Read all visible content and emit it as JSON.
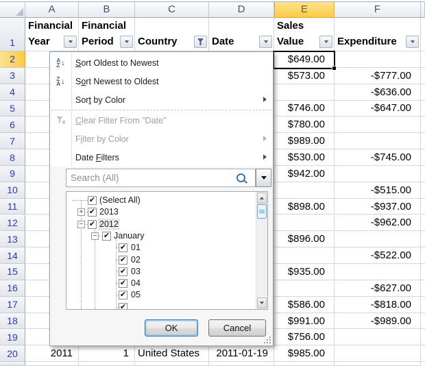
{
  "columns": [
    "A",
    "B",
    "C",
    "D",
    "E",
    "F"
  ],
  "selected_column": "E",
  "selected_cell": "E2",
  "header_row": [
    {
      "col": "A",
      "lines": [
        "Financial",
        "Year"
      ],
      "button": "dropdown"
    },
    {
      "col": "B",
      "lines": [
        "Financial",
        "Period"
      ],
      "button": "dropdown"
    },
    {
      "col": "C",
      "lines": [
        "Country"
      ],
      "button": "filter-applied"
    },
    {
      "col": "D",
      "lines": [
        "Date"
      ],
      "button": "dropdown"
    },
    {
      "col": "E",
      "lines": [
        "Sales",
        "Value"
      ],
      "button": "dropdown"
    },
    {
      "col": "F",
      "lines": [
        "Expenditure"
      ],
      "button": "dropdown"
    }
  ],
  "rows": [
    {
      "n": "2",
      "A": "",
      "B": "",
      "C": "",
      "D": "",
      "E": "$649.00",
      "F": ""
    },
    {
      "n": "3",
      "A": "",
      "B": "",
      "C": "",
      "D": "",
      "E": "$573.00",
      "F": "-$777.00"
    },
    {
      "n": "4",
      "A": "",
      "B": "",
      "C": "",
      "D": "",
      "E": "",
      "F": "-$636.00"
    },
    {
      "n": "5",
      "A": "",
      "B": "",
      "C": "",
      "D": "",
      "E": "$746.00",
      "F": "-$647.00"
    },
    {
      "n": "6",
      "A": "",
      "B": "",
      "C": "",
      "D": "",
      "E": "$780.00",
      "F": ""
    },
    {
      "n": "7",
      "A": "",
      "B": "",
      "C": "",
      "D": "",
      "E": "$989.00",
      "F": ""
    },
    {
      "n": "8",
      "A": "",
      "B": "",
      "C": "",
      "D": "",
      "E": "$530.00",
      "F": "-$745.00"
    },
    {
      "n": "9",
      "A": "",
      "B": "",
      "C": "",
      "D": "",
      "E": "$942.00",
      "F": ""
    },
    {
      "n": "10",
      "A": "",
      "B": "",
      "C": "",
      "D": "",
      "E": "",
      "F": "-$515.00"
    },
    {
      "n": "11",
      "A": "",
      "B": "",
      "C": "",
      "D": "",
      "E": "$898.00",
      "F": "-$937.00"
    },
    {
      "n": "12",
      "A": "",
      "B": "",
      "C": "",
      "D": "",
      "E": "",
      "F": "-$962.00"
    },
    {
      "n": "13",
      "A": "",
      "B": "",
      "C": "",
      "D": "",
      "E": "$896.00",
      "F": ""
    },
    {
      "n": "14",
      "A": "",
      "B": "",
      "C": "",
      "D": "",
      "E": "",
      "F": "-$522.00"
    },
    {
      "n": "15",
      "A": "",
      "B": "",
      "C": "",
      "D": "",
      "E": "$935.00",
      "F": ""
    },
    {
      "n": "16",
      "A": "",
      "B": "",
      "C": "",
      "D": "",
      "E": "",
      "F": "-$627.00"
    },
    {
      "n": "17",
      "A": "",
      "B": "",
      "C": "",
      "D": "",
      "E": "$586.00",
      "F": "-$818.00"
    },
    {
      "n": "18",
      "A": "",
      "B": "",
      "C": "",
      "D": "",
      "E": "$991.00",
      "F": "-$989.00"
    },
    {
      "n": "19",
      "A": "",
      "B": "",
      "C": "",
      "D": "",
      "E": "$756.00",
      "F": ""
    },
    {
      "n": "20",
      "A": "2011",
      "B": "1",
      "C": "United States",
      "D": "2011-01-19",
      "E": "$985.00",
      "F": ""
    }
  ],
  "filter_menu": {
    "items": [
      {
        "id": "sort-oldest",
        "label": "Sort Oldest to Newest",
        "underline": 0,
        "icon": "sort-az",
        "enabled": true,
        "submenu": false
      },
      {
        "id": "sort-newest",
        "label": "Sort Newest to Oldest",
        "underline": 1,
        "icon": "sort-za",
        "enabled": true,
        "submenu": false
      },
      {
        "id": "sort-by-color",
        "label": "Sort by Color",
        "underline": 3,
        "icon": "",
        "enabled": true,
        "submenu": true
      },
      {
        "id": "separator"
      },
      {
        "id": "clear-filter",
        "label": "Clear Filter From \"Date\"",
        "underline": 0,
        "icon": "clear-filter",
        "enabled": false,
        "submenu": false
      },
      {
        "id": "filter-by-color",
        "label": "Filter by Color",
        "underline": 1,
        "icon": "",
        "enabled": false,
        "submenu": true
      },
      {
        "id": "date-filters",
        "label": "Date Filters",
        "underline": 5,
        "icon": "",
        "enabled": true,
        "submenu": true
      }
    ],
    "search_placeholder": "Search (All)",
    "tree": [
      {
        "label": "(Select All)",
        "level": 0,
        "checked": true,
        "expand": ""
      },
      {
        "label": "2013",
        "level": 0,
        "checked": true,
        "expand": "plus"
      },
      {
        "label": "2012",
        "level": 0,
        "checked": true,
        "expand": "minus",
        "focused": true
      },
      {
        "label": "January",
        "level": 1,
        "checked": true,
        "expand": "minus"
      },
      {
        "label": "01",
        "level": 2,
        "checked": true,
        "expand": ""
      },
      {
        "label": "02",
        "level": 2,
        "checked": true,
        "expand": ""
      },
      {
        "label": "03",
        "level": 2,
        "checked": true,
        "expand": ""
      },
      {
        "label": "04",
        "level": 2,
        "checked": true,
        "expand": ""
      },
      {
        "label": "05",
        "level": 2,
        "checked": true,
        "expand": ""
      },
      {
        "label": "",
        "level": 2,
        "checked": true,
        "expand": "",
        "partial": true
      }
    ],
    "ok_label": "OK",
    "cancel_label": "Cancel"
  },
  "colors": {
    "selected_header": "#fbcb45",
    "grid_line": "#d0d7e5",
    "row_number_blue": "#2239cc",
    "menu_disabled": "#9f9f9f"
  }
}
